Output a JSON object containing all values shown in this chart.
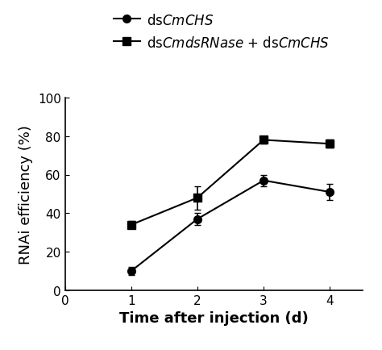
{
  "x": [
    1,
    2,
    3,
    4
  ],
  "series1_y": [
    10,
    37,
    57,
    51
  ],
  "series1_yerr": [
    2,
    3,
    3,
    4
  ],
  "series2_y": [
    34,
    48,
    78,
    76
  ],
  "series2_yerr": [
    2,
    6,
    2,
    2
  ],
  "xlabel": "Time after injection (d)",
  "ylabel": "RNAi efficiency (%)",
  "xlim": [
    0,
    4.5
  ],
  "ylim": [
    0,
    100
  ],
  "xticks": [
    0,
    1,
    2,
    3,
    4
  ],
  "yticks": [
    0,
    20,
    40,
    60,
    80,
    100
  ],
  "line_color": "#000000",
  "marker_circle": "o",
  "marker_square": "s",
  "markersize": 7,
  "linewidth": 1.5,
  "capsize": 3,
  "elinewidth": 1.2,
  "legend_fontsize": 12,
  "axis_label_fontsize": 13,
  "tick_fontsize": 11,
  "background_color": "#ffffff",
  "label1": "ds$\\it{CmCHS}$",
  "label2": "ds$\\it{CmdsRNase}$ + ds$\\it{CmCHS}$"
}
